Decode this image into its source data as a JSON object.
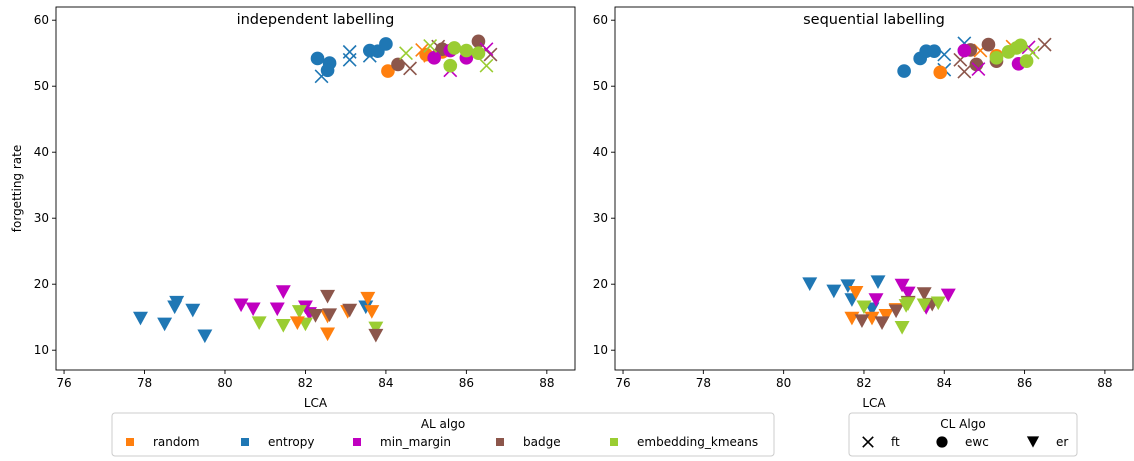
{
  "colors": {
    "random": "#ff7f0e",
    "entropy": "#1f77b4",
    "min_margin": "#c000c0",
    "badge": "#8c564b",
    "embedding_kmeans": "#9acd32"
  },
  "chart_data": [
    {
      "type": "scatter",
      "title": "independent labelling",
      "xlabel": "LCA",
      "ylabel": "forgetting rate",
      "xlim": [
        75.8,
        88.7
      ],
      "ylim": [
        7,
        62
      ],
      "xticks": [
        76,
        78,
        80,
        82,
        84,
        86,
        88
      ],
      "yticks": [
        10,
        20,
        30,
        40,
        50,
        60
      ],
      "grid": false,
      "points": [
        {
          "al": "entropy",
          "cl": "ft",
          "x": 82.4,
          "y": 51.5
        },
        {
          "al": "entropy",
          "cl": "ft",
          "x": 83.1,
          "y": 54.0
        },
        {
          "al": "entropy",
          "cl": "ft",
          "x": 83.1,
          "y": 55.2
        },
        {
          "al": "entropy",
          "cl": "ft",
          "x": 83.6,
          "y": 54.6
        },
        {
          "al": "entropy",
          "cl": "ewc",
          "x": 82.3,
          "y": 54.2
        },
        {
          "al": "entropy",
          "cl": "ewc",
          "x": 82.6,
          "y": 53.5
        },
        {
          "al": "entropy",
          "cl": "ewc",
          "x": 82.55,
          "y": 52.4
        },
        {
          "al": "entropy",
          "cl": "ewc",
          "x": 83.6,
          "y": 55.4
        },
        {
          "al": "entropy",
          "cl": "ewc",
          "x": 83.8,
          "y": 55.3
        },
        {
          "al": "entropy",
          "cl": "ewc",
          "x": 84.0,
          "y": 56.4
        },
        {
          "al": "random",
          "cl": "ft",
          "x": 84.9,
          "y": 55.5
        },
        {
          "al": "random",
          "cl": "ft",
          "x": 85.1,
          "y": 54.6
        },
        {
          "al": "random",
          "cl": "ewc",
          "x": 84.05,
          "y": 52.3
        },
        {
          "al": "random",
          "cl": "ewc",
          "x": 85.0,
          "y": 54.8
        },
        {
          "al": "random",
          "cl": "ewc",
          "x": 85.4,
          "y": 55.2
        },
        {
          "al": "badge",
          "cl": "ft",
          "x": 84.6,
          "y": 52.7
        },
        {
          "al": "badge",
          "cl": "ft",
          "x": 85.3,
          "y": 56.0
        },
        {
          "al": "badge",
          "cl": "ft",
          "x": 86.6,
          "y": 54.8
        },
        {
          "al": "badge",
          "cl": "ewc",
          "x": 84.3,
          "y": 53.3
        },
        {
          "al": "badge",
          "cl": "ewc",
          "x": 85.4,
          "y": 55.6
        },
        {
          "al": "badge",
          "cl": "ewc",
          "x": 86.3,
          "y": 56.8
        },
        {
          "al": "min_margin",
          "cl": "ft",
          "x": 85.6,
          "y": 52.4
        },
        {
          "al": "min_margin",
          "cl": "ft",
          "x": 86.5,
          "y": 55.6
        },
        {
          "al": "min_margin",
          "cl": "ewc",
          "x": 85.2,
          "y": 54.3
        },
        {
          "al": "min_margin",
          "cl": "ewc",
          "x": 85.6,
          "y": 55.4
        },
        {
          "al": "min_margin",
          "cl": "ewc",
          "x": 86.0,
          "y": 54.3
        },
        {
          "al": "embedding_kmeans",
          "cl": "ft",
          "x": 84.5,
          "y": 55.0
        },
        {
          "al": "embedding_kmeans",
          "cl": "ft",
          "x": 85.1,
          "y": 56.1
        },
        {
          "al": "embedding_kmeans",
          "cl": "ft",
          "x": 86.5,
          "y": 53.1
        },
        {
          "al": "embedding_kmeans",
          "cl": "ewc",
          "x": 85.6,
          "y": 53.1
        },
        {
          "al": "embedding_kmeans",
          "cl": "ewc",
          "x": 85.7,
          "y": 55.8
        },
        {
          "al": "embedding_kmeans",
          "cl": "ewc",
          "x": 86.0,
          "y": 55.4
        },
        {
          "al": "embedding_kmeans",
          "cl": "ewc",
          "x": 86.3,
          "y": 55.0
        },
        {
          "al": "entropy",
          "cl": "er",
          "x": 77.9,
          "y": 14.8
        },
        {
          "al": "entropy",
          "cl": "er",
          "x": 78.5,
          "y": 13.9
        },
        {
          "al": "entropy",
          "cl": "er",
          "x": 78.75,
          "y": 16.5
        },
        {
          "al": "entropy",
          "cl": "er",
          "x": 78.8,
          "y": 17.2
        },
        {
          "al": "entropy",
          "cl": "er",
          "x": 79.2,
          "y": 16.0
        },
        {
          "al": "entropy",
          "cl": "er",
          "x": 79.5,
          "y": 12.1
        },
        {
          "al": "entropy",
          "cl": "er",
          "x": 83.5,
          "y": 16.5
        },
        {
          "al": "min_margin",
          "cl": "er",
          "x": 80.4,
          "y": 16.8
        },
        {
          "al": "min_margin",
          "cl": "er",
          "x": 80.7,
          "y": 16.2
        },
        {
          "al": "min_margin",
          "cl": "er",
          "x": 81.3,
          "y": 16.2
        },
        {
          "al": "min_margin",
          "cl": "er",
          "x": 81.45,
          "y": 18.8
        },
        {
          "al": "min_margin",
          "cl": "er",
          "x": 82.0,
          "y": 16.5
        },
        {
          "al": "min_margin",
          "cl": "er",
          "x": 82.1,
          "y": 15.5
        },
        {
          "al": "embedding_kmeans",
          "cl": "er",
          "x": 80.85,
          "y": 14.1
        },
        {
          "al": "embedding_kmeans",
          "cl": "er",
          "x": 81.45,
          "y": 13.7
        },
        {
          "al": "embedding_kmeans",
          "cl": "er",
          "x": 81.85,
          "y": 15.8
        },
        {
          "al": "embedding_kmeans",
          "cl": "er",
          "x": 82.0,
          "y": 13.9
        },
        {
          "al": "embedding_kmeans",
          "cl": "er",
          "x": 83.75,
          "y": 13.3
        },
        {
          "al": "random",
          "cl": "er",
          "x": 81.8,
          "y": 14.1
        },
        {
          "al": "random",
          "cl": "er",
          "x": 82.55,
          "y": 12.4
        },
        {
          "al": "random",
          "cl": "er",
          "x": 82.55,
          "y": 15.1
        },
        {
          "al": "random",
          "cl": "er",
          "x": 83.05,
          "y": 15.8
        },
        {
          "al": "random",
          "cl": "er",
          "x": 83.55,
          "y": 17.8
        },
        {
          "al": "random",
          "cl": "er",
          "x": 83.65,
          "y": 15.8
        },
        {
          "al": "badge",
          "cl": "er",
          "x": 82.25,
          "y": 15.2
        },
        {
          "al": "badge",
          "cl": "er",
          "x": 82.55,
          "y": 18.1
        },
        {
          "al": "badge",
          "cl": "er",
          "x": 82.6,
          "y": 15.3
        },
        {
          "al": "badge",
          "cl": "er",
          "x": 83.1,
          "y": 16.0
        },
        {
          "al": "badge",
          "cl": "er",
          "x": 83.75,
          "y": 12.2
        }
      ]
    },
    {
      "type": "scatter",
      "title": "sequential labelling",
      "xlabel": "LCA",
      "ylabel": "",
      "xlim": [
        75.8,
        88.7
      ],
      "ylim": [
        7,
        62
      ],
      "xticks": [
        76,
        78,
        80,
        82,
        84,
        86,
        88
      ],
      "yticks": [
        10,
        20,
        30,
        40,
        50,
        60
      ],
      "grid": false,
      "points": [
        {
          "al": "entropy",
          "cl": "ewc",
          "x": 83.0,
          "y": 52.3
        },
        {
          "al": "entropy",
          "cl": "ewc",
          "x": 83.4,
          "y": 54.2
        },
        {
          "al": "entropy",
          "cl": "ewc",
          "x": 83.55,
          "y": 55.3
        },
        {
          "al": "entropy",
          "cl": "ewc",
          "x": 83.75,
          "y": 55.3
        },
        {
          "al": "entropy",
          "cl": "ft",
          "x": 84.0,
          "y": 54.8
        },
        {
          "al": "entropy",
          "cl": "ft",
          "x": 84.0,
          "y": 52.5
        },
        {
          "al": "entropy",
          "cl": "ft",
          "x": 84.5,
          "y": 56.5
        },
        {
          "al": "random",
          "cl": "ewc",
          "x": 83.9,
          "y": 52.1
        },
        {
          "al": "random",
          "cl": "ft",
          "x": 84.9,
          "y": 55.4
        },
        {
          "al": "random",
          "cl": "ewc",
          "x": 85.3,
          "y": 54.6
        },
        {
          "al": "random",
          "cl": "ft",
          "x": 85.7,
          "y": 56.0
        },
        {
          "al": "badge",
          "cl": "ft",
          "x": 84.4,
          "y": 54.0
        },
        {
          "al": "badge",
          "cl": "ft",
          "x": 84.5,
          "y": 52.2
        },
        {
          "al": "badge",
          "cl": "ewc",
          "x": 84.8,
          "y": 53.3
        },
        {
          "al": "badge",
          "cl": "ewc",
          "x": 84.65,
          "y": 55.5
        },
        {
          "al": "badge",
          "cl": "ewc",
          "x": 85.1,
          "y": 56.3
        },
        {
          "al": "badge",
          "cl": "ewc",
          "x": 85.3,
          "y": 53.8
        },
        {
          "al": "badge",
          "cl": "ft",
          "x": 86.5,
          "y": 56.3
        },
        {
          "al": "min_margin",
          "cl": "ewc",
          "x": 84.5,
          "y": 55.4
        },
        {
          "al": "min_margin",
          "cl": "ft",
          "x": 84.85,
          "y": 52.6
        },
        {
          "al": "min_margin",
          "cl": "ewc",
          "x": 85.85,
          "y": 53.4
        },
        {
          "al": "min_margin",
          "cl": "ft",
          "x": 86.1,
          "y": 55.9
        },
        {
          "al": "embedding_kmeans",
          "cl": "ewc",
          "x": 85.3,
          "y": 54.3
        },
        {
          "al": "embedding_kmeans",
          "cl": "ewc",
          "x": 85.6,
          "y": 55.2
        },
        {
          "al": "embedding_kmeans",
          "cl": "ewc",
          "x": 85.8,
          "y": 55.8
        },
        {
          "al": "embedding_kmeans",
          "cl": "ewc",
          "x": 85.9,
          "y": 56.2
        },
        {
          "al": "embedding_kmeans",
          "cl": "ewc",
          "x": 86.05,
          "y": 53.8
        },
        {
          "al": "embedding_kmeans",
          "cl": "ft",
          "x": 86.2,
          "y": 55.1
        },
        {
          "al": "entropy",
          "cl": "er",
          "x": 80.65,
          "y": 20.0
        },
        {
          "al": "entropy",
          "cl": "er",
          "x": 81.25,
          "y": 18.9
        },
        {
          "al": "entropy",
          "cl": "er",
          "x": 81.6,
          "y": 19.7
        },
        {
          "al": "entropy",
          "cl": "er",
          "x": 81.7,
          "y": 17.6
        },
        {
          "al": "entropy",
          "cl": "er",
          "x": 82.35,
          "y": 20.3
        },
        {
          "al": "entropy",
          "cl": "er",
          "x": 82.2,
          "y": 16.2
        },
        {
          "al": "random",
          "cl": "er",
          "x": 81.7,
          "y": 14.8
        },
        {
          "al": "random",
          "cl": "er",
          "x": 81.8,
          "y": 18.7
        },
        {
          "al": "random",
          "cl": "er",
          "x": 82.2,
          "y": 14.8
        },
        {
          "al": "random",
          "cl": "er",
          "x": 82.55,
          "y": 15.2
        },
        {
          "al": "random",
          "cl": "er",
          "x": 82.8,
          "y": 16.1
        },
        {
          "al": "min_margin",
          "cl": "er",
          "x": 82.3,
          "y": 17.6
        },
        {
          "al": "min_margin",
          "cl": "er",
          "x": 82.95,
          "y": 19.8
        },
        {
          "al": "min_margin",
          "cl": "er",
          "x": 83.1,
          "y": 18.6
        },
        {
          "al": "min_margin",
          "cl": "er",
          "x": 83.55,
          "y": 16.4
        },
        {
          "al": "min_margin",
          "cl": "er",
          "x": 84.1,
          "y": 18.3
        },
        {
          "al": "badge",
          "cl": "er",
          "x": 81.95,
          "y": 14.4
        },
        {
          "al": "badge",
          "cl": "er",
          "x": 82.45,
          "y": 14.1
        },
        {
          "al": "badge",
          "cl": "er",
          "x": 82.8,
          "y": 15.9
        },
        {
          "al": "badge",
          "cl": "er",
          "x": 83.1,
          "y": 17.2
        },
        {
          "al": "badge",
          "cl": "er",
          "x": 83.5,
          "y": 18.5
        },
        {
          "al": "badge",
          "cl": "er",
          "x": 83.7,
          "y": 16.9
        },
        {
          "al": "embedding_kmeans",
          "cl": "er",
          "x": 82.0,
          "y": 16.5
        },
        {
          "al": "embedding_kmeans",
          "cl": "er",
          "x": 82.95,
          "y": 13.4
        },
        {
          "al": "embedding_kmeans",
          "cl": "er",
          "x": 83.05,
          "y": 16.7
        },
        {
          "al": "embedding_kmeans",
          "cl": "er",
          "x": 83.1,
          "y": 17.0
        },
        {
          "al": "embedding_kmeans",
          "cl": "er",
          "x": 83.5,
          "y": 16.8
        },
        {
          "al": "embedding_kmeans",
          "cl": "er",
          "x": 83.85,
          "y": 17.1
        }
      ]
    }
  ],
  "legend_al": {
    "title": "AL algo",
    "entries": [
      {
        "key": "random",
        "label": "random"
      },
      {
        "key": "entropy",
        "label": "entropy"
      },
      {
        "key": "min_margin",
        "label": "min_margin"
      },
      {
        "key": "badge",
        "label": "badge"
      },
      {
        "key": "embedding_kmeans",
        "label": "embedding_kmeans"
      }
    ]
  },
  "legend_cl": {
    "title": "CL Algo",
    "entries": [
      {
        "key": "ft",
        "label": "ft"
      },
      {
        "key": "ewc",
        "label": "ewc"
      },
      {
        "key": "er",
        "label": "er"
      }
    ]
  }
}
